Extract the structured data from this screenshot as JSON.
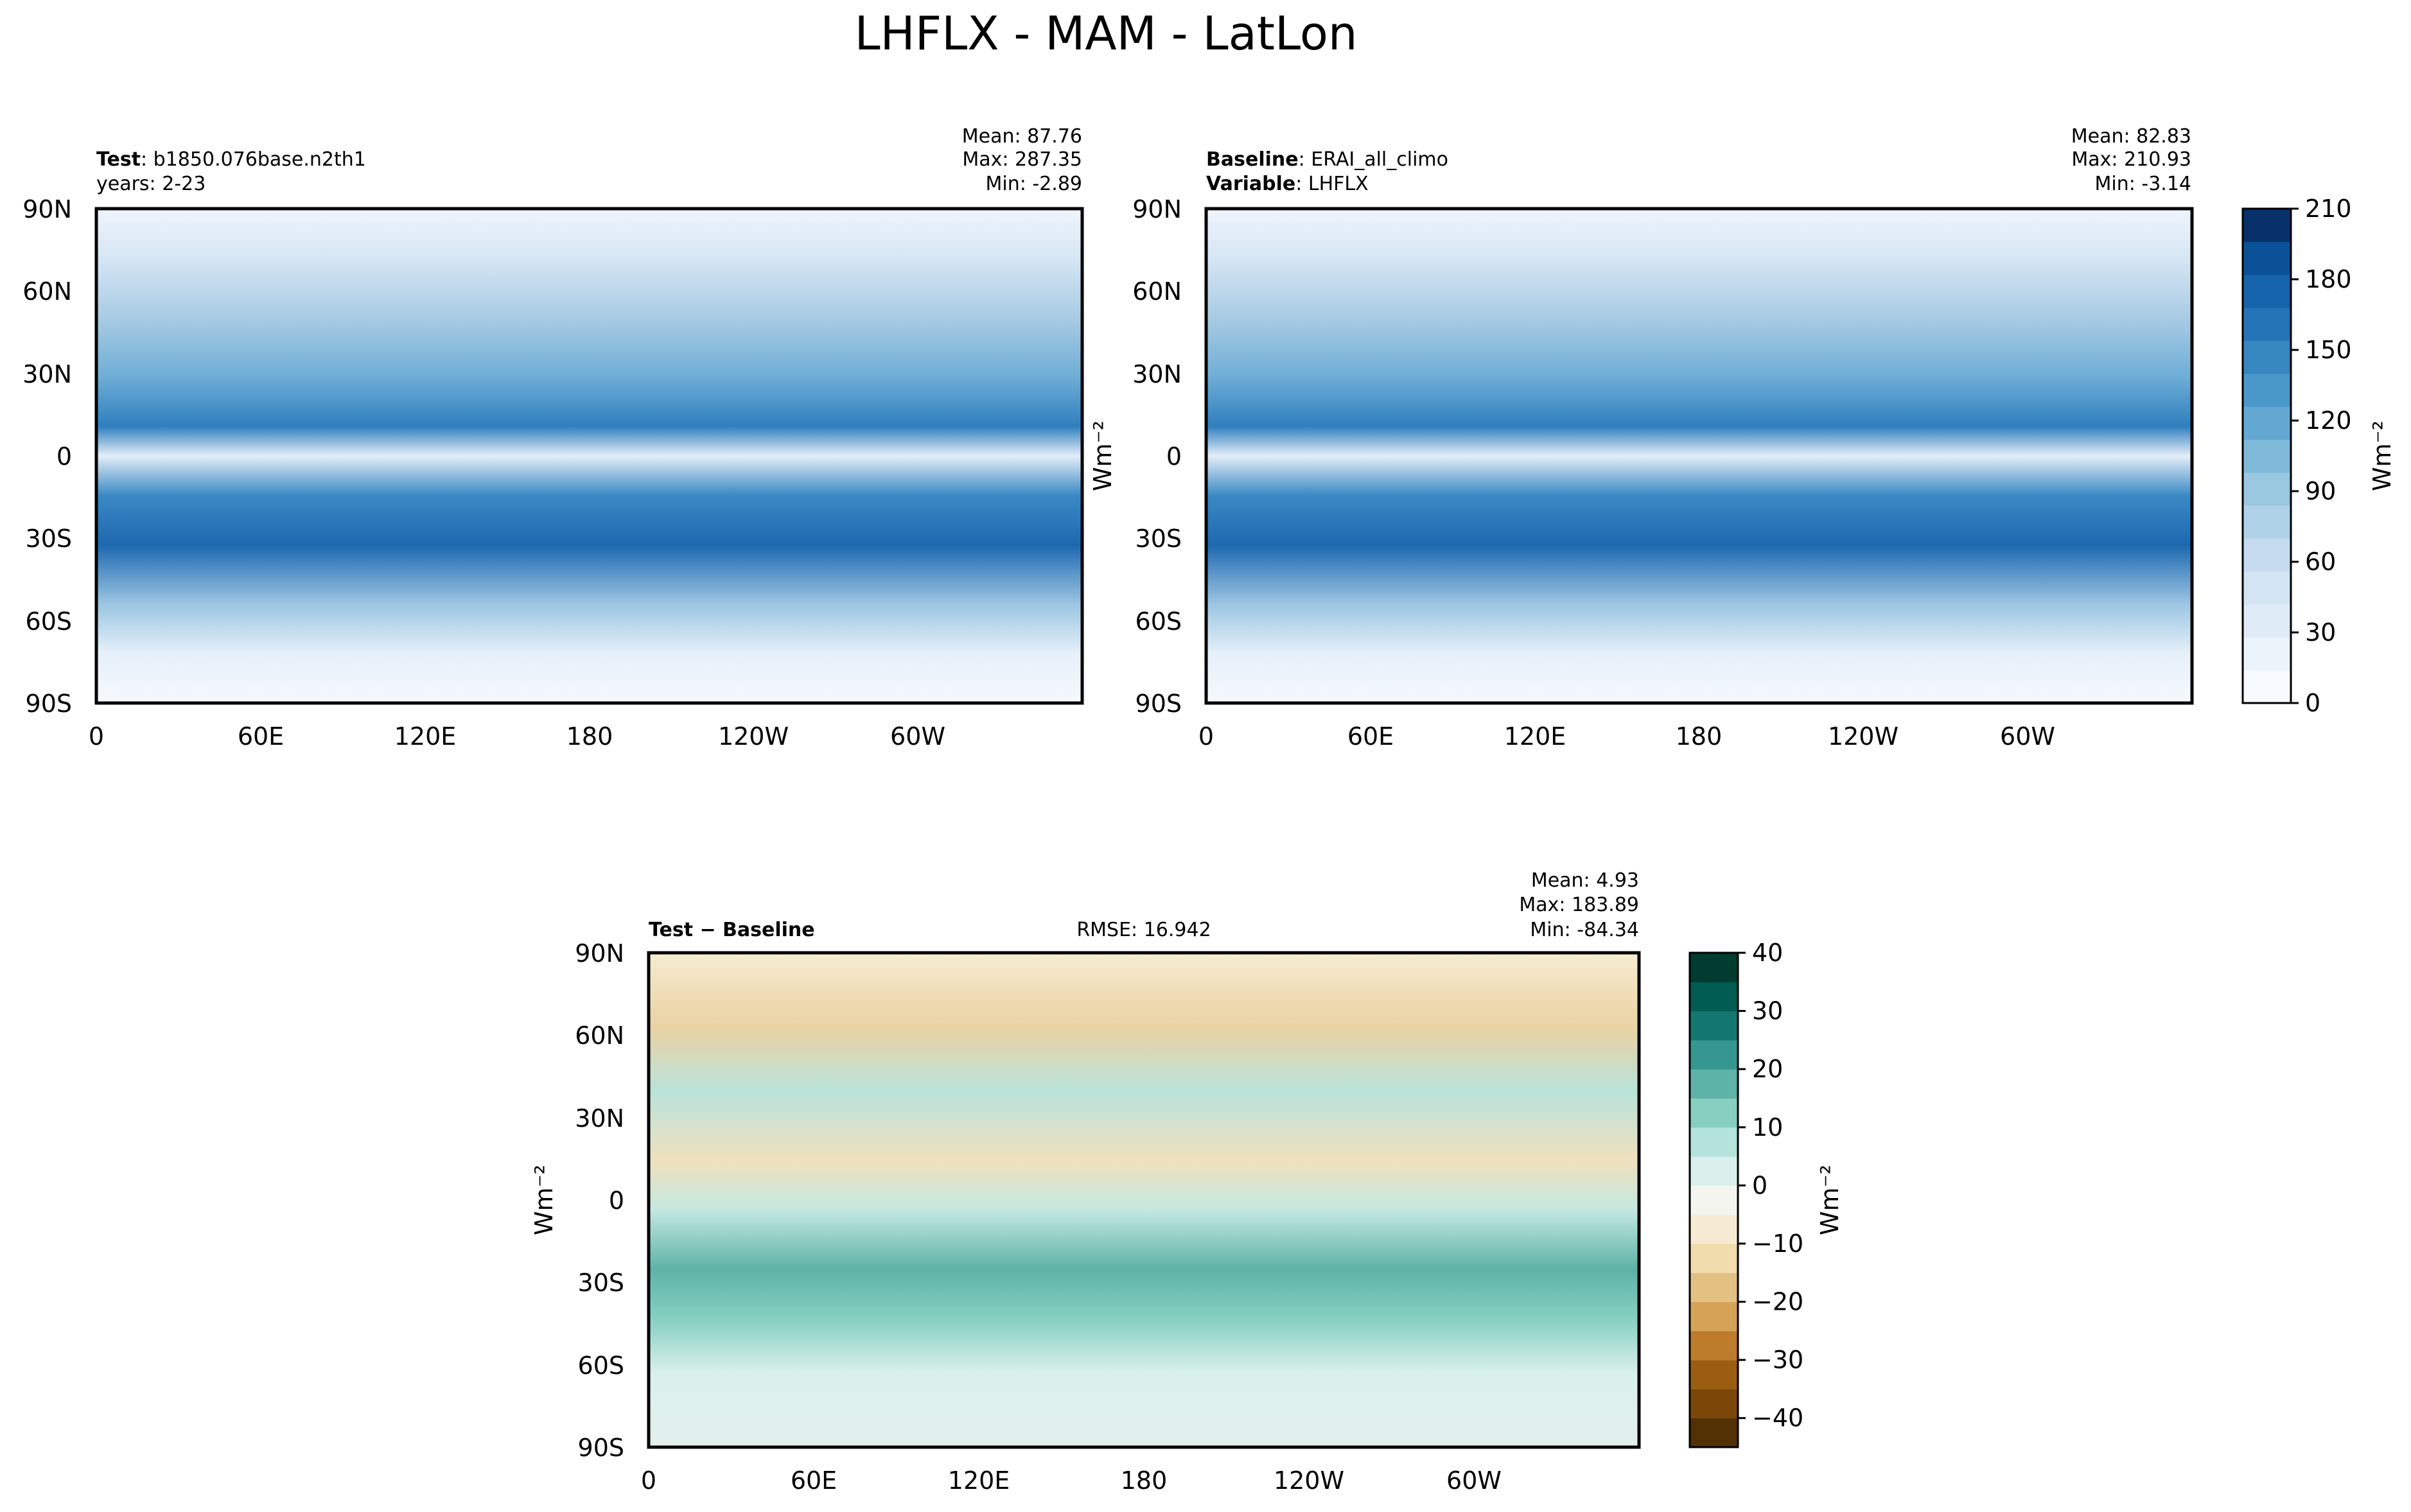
{
  "figure": {
    "title": "LHFLX - MAM - LatLon"
  },
  "panels": {
    "test": {
      "name_bold": "Test",
      "name_rest": ": b1850.076base.n2th1",
      "line2": "years: 2-23",
      "stats": [
        "Mean: 87.76",
        "Max: 287.35",
        "Min: -2.89"
      ]
    },
    "baseline": {
      "name_bold": "Baseline",
      "name_rest": ": ERAI_all_climo",
      "var_bold": "Variable",
      "var_rest": ": LHFLX",
      "stats": [
        "Mean: 82.83",
        "Max: 210.93",
        "Min: -3.14"
      ]
    },
    "diff": {
      "name_bold": "Test − Baseline",
      "rmse": "RMSE: 16.942",
      "stats": [
        "Mean:  4.93",
        "Max: 183.89",
        "Min: -84.34"
      ]
    }
  },
  "units": "Wm⁻²",
  "colorbar_seq": {
    "ticks": [
      "0",
      "30",
      "60",
      "90",
      "120",
      "150",
      "180",
      "210"
    ],
    "colors": [
      "#f7fbff",
      "#ebf3fb",
      "#dfebf7",
      "#d3e4f3",
      "#c6dbef",
      "#b0d2e8",
      "#9ac8e0",
      "#7fb9da",
      "#63a8d3",
      "#4a98c9",
      "#3787c0",
      "#2474b7",
      "#1664ab",
      "#0b5198",
      "#08306b"
    ]
  },
  "colorbar_div": {
    "ticks": [
      "40",
      "30",
      "20",
      "10",
      "0",
      "−10",
      "−20",
      "−30",
      "−40"
    ],
    "colors": [
      "#543005",
      "#7a4709",
      "#9a5d12",
      "#bd7c2b",
      "#d4a357",
      "#e3c183",
      "#f0dcac",
      "#f6ebd2",
      "#f5f5f0",
      "#d9f0ec",
      "#b3e3da",
      "#86cfc1",
      "#5db3a7",
      "#35978f",
      "#13776f",
      "#015c52",
      "#003c30"
    ]
  },
  "chart_data": [
    {
      "type": "heatmap",
      "panel": "test",
      "variable": "LHFLX",
      "season": "MAM",
      "x_ticks": [
        "0",
        "60E",
        "120E",
        "180",
        "120W",
        "60W"
      ],
      "y_ticks": [
        "90N",
        "60N",
        "30N",
        "0",
        "30S",
        "60S",
        "90S"
      ],
      "xlim": [
        0,
        360
      ],
      "ylim": [
        -90,
        90
      ],
      "stats": {
        "mean": 87.76,
        "max": 287.35,
        "min": -2.89
      },
      "color_range": [
        0,
        210
      ]
    },
    {
      "type": "heatmap",
      "panel": "baseline",
      "variable": "LHFLX",
      "x_ticks": [
        "0",
        "60E",
        "120E",
        "180",
        "120W",
        "60W"
      ],
      "y_ticks": [
        "90N",
        "60N",
        "30N",
        "0",
        "30S",
        "60S",
        "90S"
      ],
      "xlim": [
        0,
        360
      ],
      "ylim": [
        -90,
        90
      ],
      "stats": {
        "mean": 82.83,
        "max": 210.93,
        "min": -3.14
      },
      "color_range": [
        0,
        210
      ],
      "colorbar_ticks": [
        0,
        30,
        60,
        90,
        120,
        150,
        180,
        210
      ]
    },
    {
      "type": "heatmap",
      "panel": "diff",
      "x_ticks": [
        "0",
        "60E",
        "120E",
        "180",
        "120W",
        "60W"
      ],
      "y_ticks": [
        "90N",
        "60N",
        "30N",
        "0",
        "30S",
        "60S",
        "90S"
      ],
      "xlim": [
        0,
        360
      ],
      "ylim": [
        -90,
        90
      ],
      "stats": {
        "mean": 4.93,
        "max": 183.89,
        "min": -84.34,
        "rmse": 16.942
      },
      "color_range": [
        -45,
        40
      ],
      "colorbar_ticks": [
        40,
        30,
        20,
        10,
        0,
        -10,
        -20,
        -30,
        -40
      ]
    }
  ]
}
